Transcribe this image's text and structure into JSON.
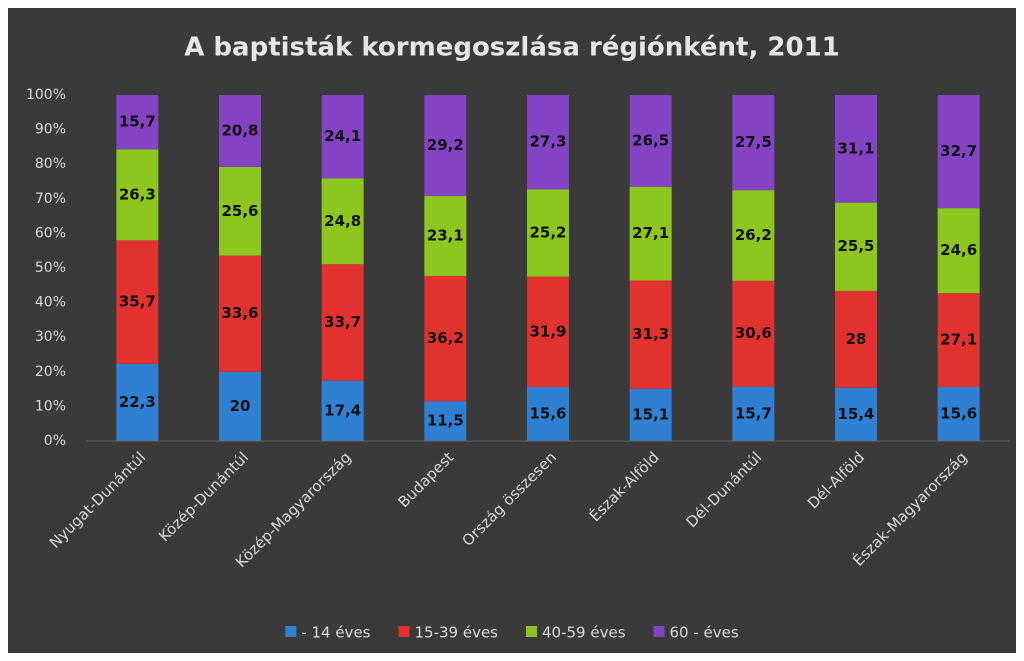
{
  "chart_data": {
    "type": "stacked_bar",
    "title": "A baptisták kormegoszlása régiónként, 2011",
    "categories": [
      "Nyugat-Dunántúl",
      "Közép-Dunántúl",
      "Közép-Magyarország",
      "Budapest",
      "Ország összesen",
      "Észak-Alföld",
      "Dél-Dunántúl",
      "Dél-Alföld",
      "Észak-Magyarország"
    ],
    "series": [
      {
        "name": "- 14 éves",
        "color": "#2f80d3",
        "values": [
          22.3,
          20,
          17.4,
          11.5,
          15.6,
          15.1,
          15.7,
          15.4,
          15.6
        ],
        "value_labels": [
          "22,3",
          "20",
          "17,4",
          "11,5",
          "15,6",
          "15,1",
          "15,7",
          "15,4",
          "15,6"
        ]
      },
      {
        "name": "15-39 éves",
        "color": "#e2322f",
        "values": [
          35.7,
          33.6,
          33.7,
          36.2,
          31.9,
          31.3,
          30.6,
          28,
          27.1
        ],
        "value_labels": [
          "35,7",
          "33,6",
          "33,7",
          "36,2",
          "31,9",
          "31,3",
          "30,6",
          "28",
          "27,1"
        ]
      },
      {
        "name": "40-59 éves",
        "color": "#8cc61e",
        "values": [
          26.3,
          25.6,
          24.8,
          23.1,
          25.2,
          27.1,
          26.2,
          25.5,
          24.6
        ],
        "value_labels": [
          "26,3",
          "25,6",
          "24,8",
          "23,1",
          "25,2",
          "27,1",
          "26,2",
          "25,5",
          "24,6"
        ]
      },
      {
        "name": "60 - éves",
        "color": "#8343c4",
        "values": [
          15.7,
          20.8,
          24.1,
          29.2,
          27.3,
          26.5,
          27.5,
          31.1,
          32.7
        ],
        "value_labels": [
          "15,7",
          "20,8",
          "24,1",
          "29,2",
          "27,3",
          "26,5",
          "27,5",
          "31,1",
          "32,7"
        ]
      }
    ],
    "ylim": [
      0,
      100
    ],
    "yticks": [
      {
        "value": 0,
        "label": "0%"
      },
      {
        "value": 10,
        "label": "10%"
      },
      {
        "value": 20,
        "label": "20%"
      },
      {
        "value": 30,
        "label": "30%"
      },
      {
        "value": 40,
        "label": "40%"
      },
      {
        "value": 50,
        "label": "50%"
      },
      {
        "value": 60,
        "label": "60%"
      },
      {
        "value": 70,
        "label": "70%"
      },
      {
        "value": 80,
        "label": "80%"
      },
      {
        "value": 90,
        "label": "90%"
      },
      {
        "value": 100,
        "label": "100%"
      }
    ],
    "grid": false,
    "legend": "bottom"
  }
}
